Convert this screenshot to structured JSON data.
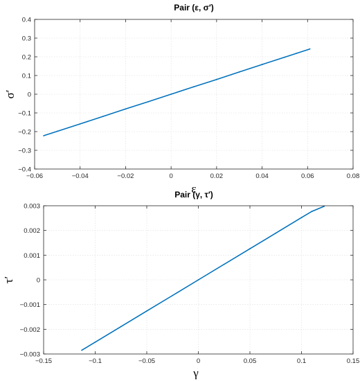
{
  "chart_data": [
    {
      "type": "scatter",
      "title": "Pair (ε, σ′)",
      "xlabel": "ε",
      "ylabel": "σ′",
      "xlim": [
        -0.06,
        0.08
      ],
      "ylim": [
        -0.4,
        0.4
      ],
      "xticks": [
        "−0.06",
        "−0.04",
        "−0.02",
        "0",
        "0.02",
        "0.04",
        "0.06",
        "0.08"
      ],
      "yticks": [
        "−0.4",
        "−0.3",
        "−0.2",
        "−0.1",
        "0",
        "0.1",
        "0.2",
        "0.3",
        "0.4"
      ],
      "xtick_values": [
        -0.06,
        -0.04,
        -0.02,
        0,
        0.02,
        0.04,
        0.06,
        0.08
      ],
      "ytick_values": [
        -0.4,
        -0.3,
        -0.2,
        -0.1,
        0,
        0.1,
        0.2,
        0.3,
        0.4
      ],
      "grid": true,
      "color": "#0072bd",
      "series": [
        {
          "x": [
            -0.056,
            -0.05,
            -0.04,
            -0.03,
            -0.02,
            -0.01,
            0,
            0.01,
            0.02,
            0.03,
            0.04,
            0.05,
            0.055,
            0.061
          ],
          "y": [
            -0.222,
            -0.198,
            -0.159,
            -0.119,
            -0.079,
            -0.04,
            0,
            0.04,
            0.079,
            0.119,
            0.159,
            0.198,
            0.218,
            0.242
          ]
        }
      ]
    },
    {
      "type": "scatter",
      "title": "Pair (γ, τ′)",
      "xlabel": "γ",
      "ylabel": "τ′",
      "xlim": [
        -0.15,
        0.15
      ],
      "ylim": [
        -0.003,
        0.003
      ],
      "xticks": [
        "−0.15",
        "−0.1",
        "−0.05",
        "0",
        "0.05",
        "0.1",
        "0.15"
      ],
      "yticks": [
        "−0.003",
        "−0.002",
        "−0.001",
        "0",
        "0.001",
        "0.002",
        "0.003"
      ],
      "xtick_values": [
        -0.15,
        -0.1,
        -0.05,
        0,
        0.05,
        0.1,
        0.15
      ],
      "ytick_values": [
        -0.003,
        -0.002,
        -0.001,
        0,
        0.001,
        0.002,
        0.003
      ],
      "grid": true,
      "color": "#0072bd",
      "series": [
        {
          "x": [
            -0.113,
            -0.1,
            -0.075,
            -0.05,
            -0.025,
            0,
            0.025,
            0.05,
            0.075,
            0.1,
            0.11,
            0.122
          ],
          "y": [
            -0.00285,
            -0.00252,
            -0.00189,
            -0.00126,
            -0.00063,
            0,
            0.00063,
            0.00126,
            0.00189,
            0.00252,
            0.00277,
            0.00298
          ]
        }
      ]
    }
  ]
}
